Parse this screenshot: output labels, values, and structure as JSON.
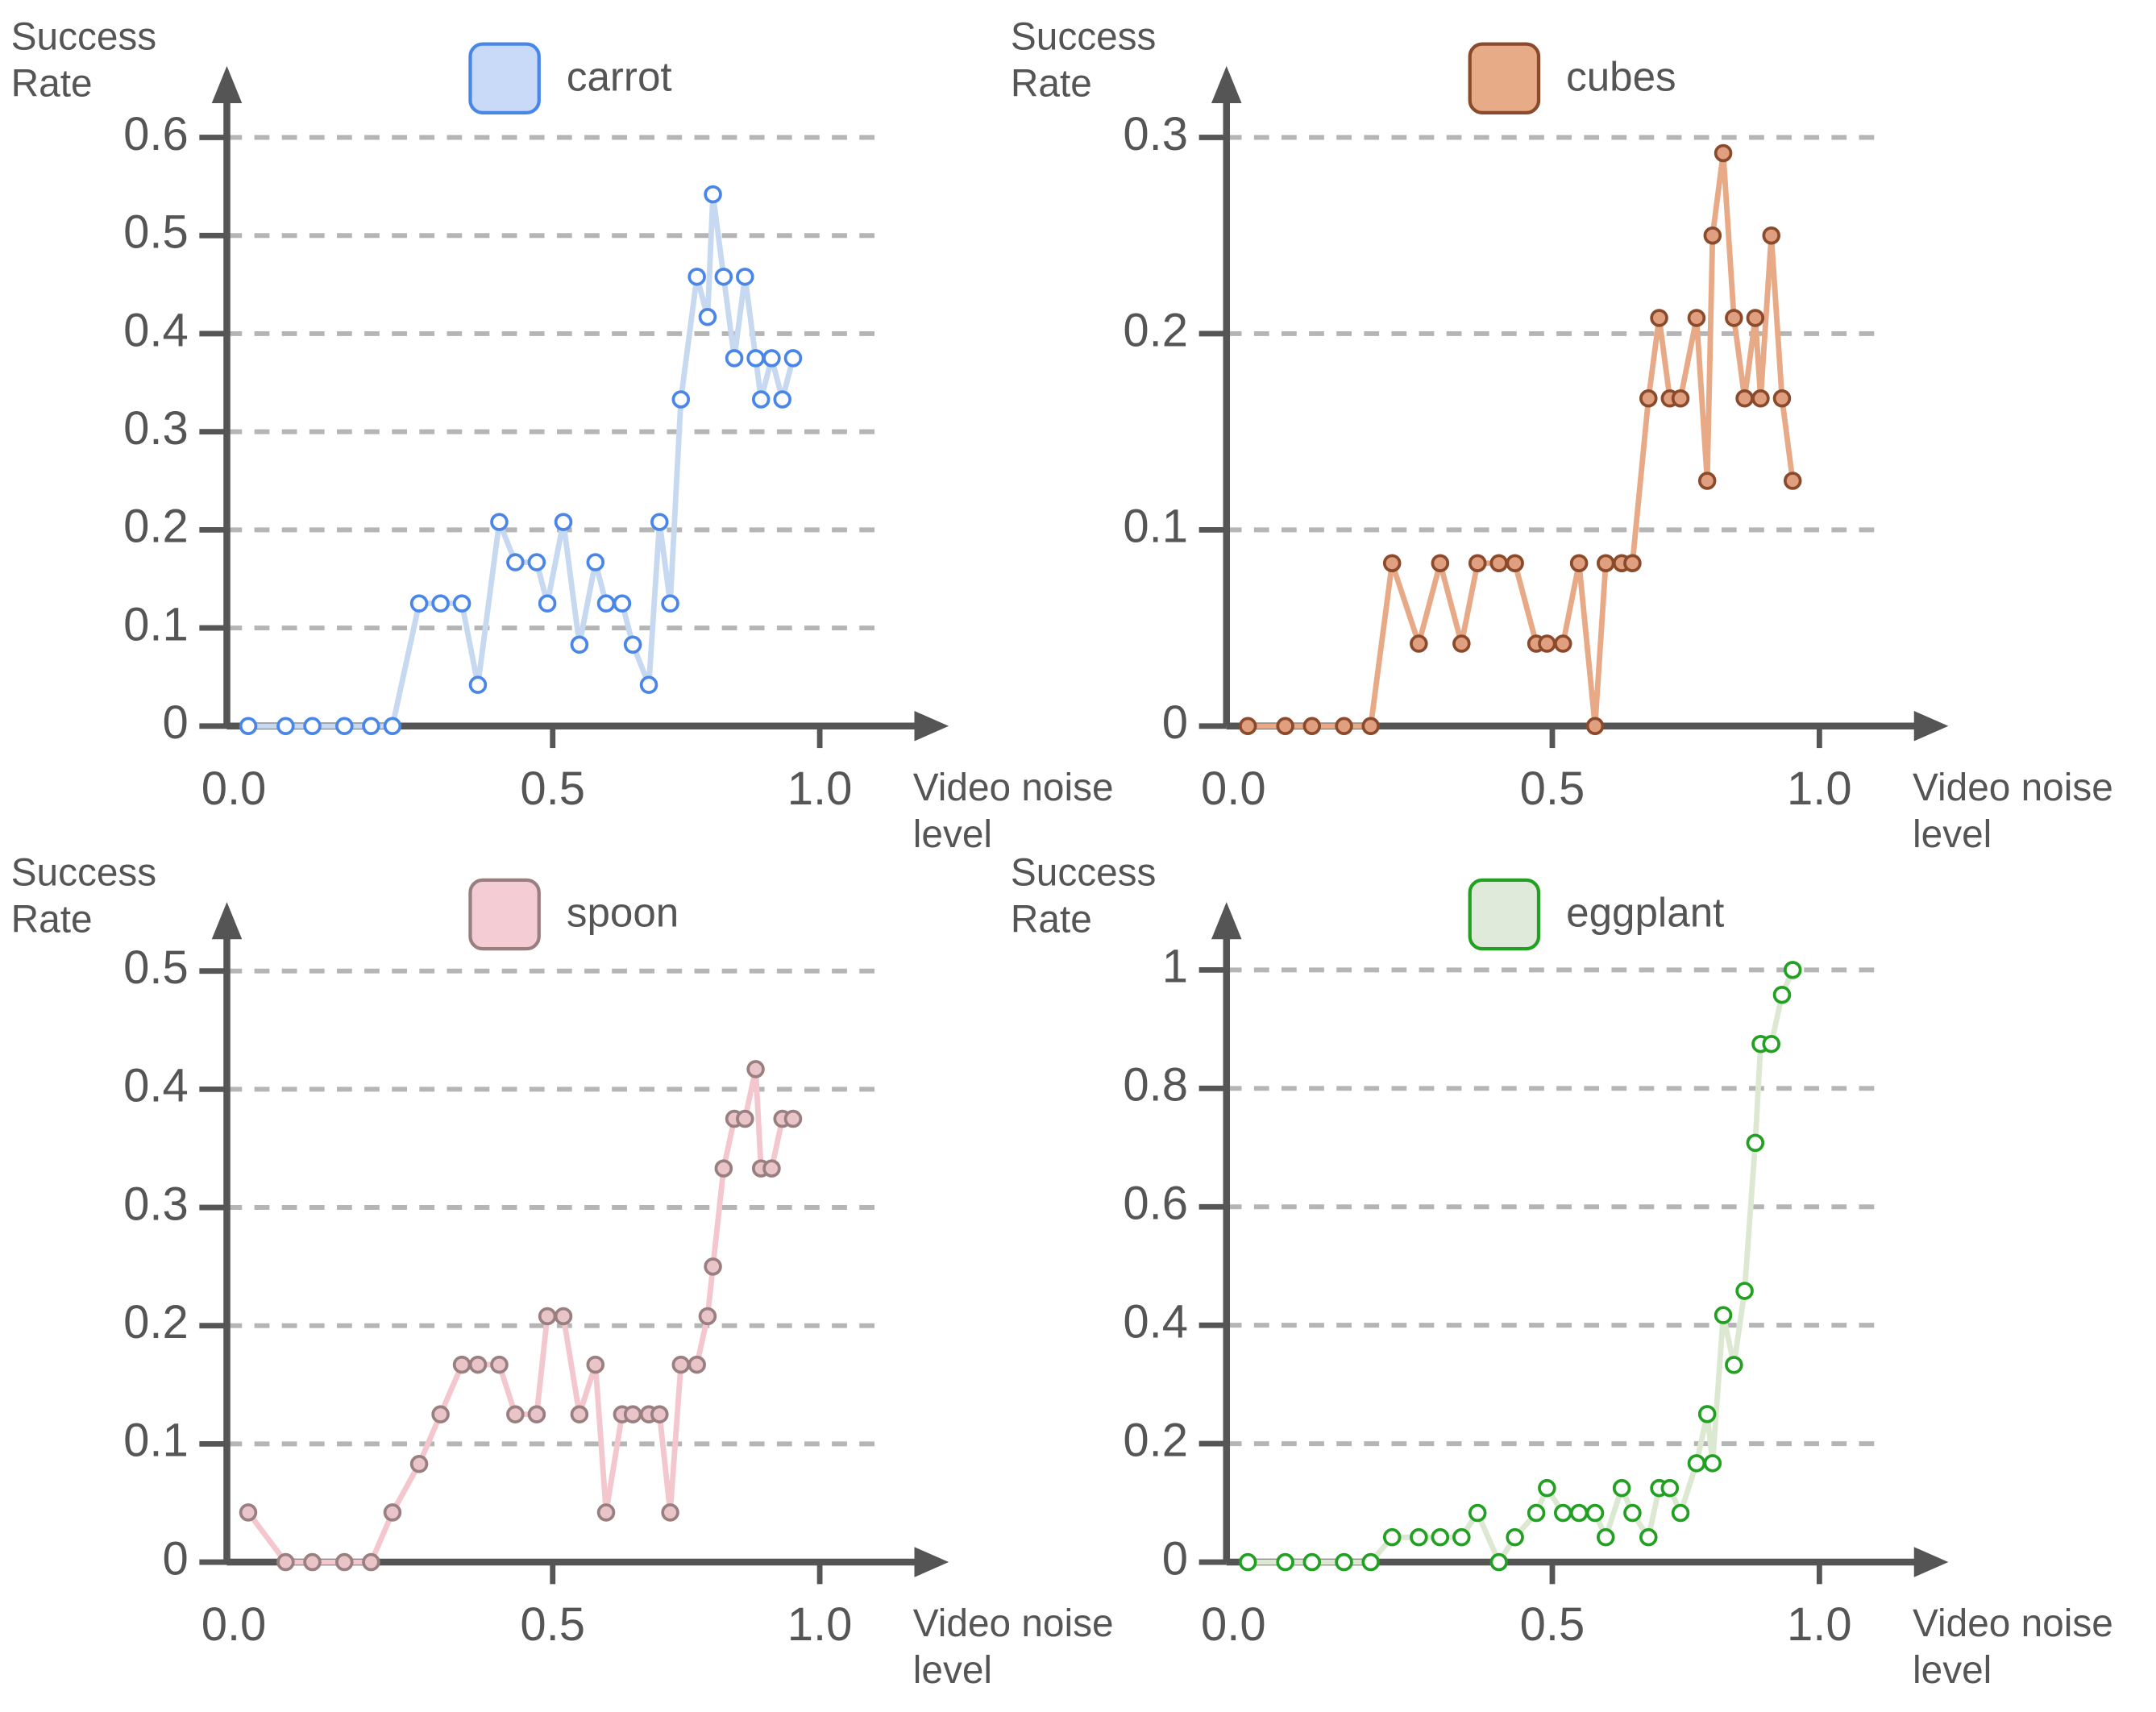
{
  "chart_data": [
    {
      "type": "line",
      "ylabel": "Success Rate",
      "xlabel": "Video noise level",
      "x": [
        -0.07,
        0.0,
        0.05,
        0.11,
        0.16,
        0.2,
        0.25,
        0.29,
        0.33,
        0.36,
        0.4,
        0.43,
        0.47,
        0.49,
        0.52,
        0.55,
        0.58,
        0.6,
        0.63,
        0.65,
        0.68,
        0.7,
        0.72,
        0.74,
        0.77,
        0.79,
        0.8,
        0.82,
        0.84,
        0.86,
        0.88,
        0.89,
        0.91,
        0.93,
        0.95
      ],
      "xlim": [
        -0.11,
        1.19
      ],
      "xticks": [
        {
          "value": 0,
          "label": "0.0"
        },
        0.5,
        {
          "value": 1,
          "label": "1.0"
        }
      ],
      "ylim": [
        0,
        0.67
      ],
      "yticks": [
        0,
        0.1,
        0.2,
        0.3,
        0.4,
        0.5,
        0.6
      ],
      "grid": true,
      "series": [
        {
          "name": "carrot",
          "color": "#c6d9f1",
          "marker_fill": "#ffffff",
          "marker_edge": "#4a86e8",
          "legend_fill": "#c9daf8",
          "values": [
            0,
            0,
            0,
            0,
            0,
            0,
            0.125,
            0.125,
            0.125,
            0.042,
            0.208,
            0.167,
            0.167,
            0.125,
            0.208,
            0.083,
            0.167,
            0.125,
            0.125,
            0.083,
            0.042,
            0.208,
            0.125,
            0.333,
            0.458,
            0.417,
            0.542,
            0.458,
            0.375,
            0.458,
            0.375,
            0.333,
            0.375,
            0.333,
            0.375
          ]
        }
      ]
    },
    {
      "type": "line",
      "ylabel": "Success Rate",
      "xlabel": "Video noise level",
      "x": [
        -0.07,
        0.0,
        0.05,
        0.11,
        0.16,
        0.2,
        0.25,
        0.29,
        0.33,
        0.36,
        0.4,
        0.43,
        0.47,
        0.49,
        0.52,
        0.55,
        0.58,
        0.6,
        0.63,
        0.65,
        0.68,
        0.7,
        0.72,
        0.74,
        0.77,
        0.79,
        0.8,
        0.82,
        0.84,
        0.86,
        0.88,
        0.89,
        0.91,
        0.93,
        0.95
      ],
      "xlim": [
        -0.11,
        1.19
      ],
      "xticks": [
        {
          "value": 0,
          "label": "0.0"
        },
        0.5,
        {
          "value": 1,
          "label": "1.0"
        }
      ],
      "ylim": [
        0,
        0.335
      ],
      "yticks": [
        0,
        0.1,
        0.2,
        0.3
      ],
      "grid": true,
      "series": [
        {
          "name": "cubes",
          "color": "#e8a987",
          "marker_fill": "#e0a080",
          "marker_edge": "#8b4a2b",
          "legend_fill": "#e8ab88",
          "values": [
            0,
            0,
            0,
            0,
            0,
            0.083,
            0.042,
            0.083,
            0.042,
            0.083,
            0.083,
            0.083,
            0.042,
            0.042,
            0.042,
            0.083,
            0,
            0.083,
            0.083,
            0.083,
            0.167,
            0.208,
            0.167,
            0.167,
            0.208,
            0.125,
            0.25,
            0.292,
            0.208,
            0.167,
            0.208,
            0.167,
            0.25,
            0.167,
            0.125
          ]
        }
      ]
    },
    {
      "type": "line",
      "ylabel": "Success Rate",
      "xlabel": "Video noise level",
      "x": [
        -0.07,
        0.0,
        0.05,
        0.11,
        0.16,
        0.2,
        0.25,
        0.29,
        0.33,
        0.36,
        0.4,
        0.43,
        0.47,
        0.49,
        0.52,
        0.55,
        0.58,
        0.6,
        0.63,
        0.65,
        0.68,
        0.7,
        0.72,
        0.74,
        0.77,
        0.79,
        0.8,
        0.82,
        0.84,
        0.86,
        0.88,
        0.89,
        0.91,
        0.93,
        0.95
      ],
      "xlim": [
        -0.11,
        1.19
      ],
      "xticks": [
        {
          "value": 0,
          "label": "0.0"
        },
        0.5,
        {
          "value": 1,
          "label": "1.0"
        }
      ],
      "ylim": [
        0,
        0.556
      ],
      "yticks": [
        0,
        0.1,
        0.2,
        0.3,
        0.4,
        0.5
      ],
      "grid": true,
      "series": [
        {
          "name": "spoon",
          "color": "#f4c7cf",
          "marker_fill": "#e9c4c8",
          "marker_edge": "#9a7f80",
          "legend_fill": "#f4ccd3",
          "values": [
            0.042,
            0,
            0,
            0,
            0,
            0.042,
            0.083,
            0.125,
            0.167,
            0.167,
            0.167,
            0.125,
            0.125,
            0.208,
            0.208,
            0.125,
            0.167,
            0.042,
            0.125,
            0.125,
            0.125,
            0.125,
            0.042,
            0.167,
            0.167,
            0.208,
            0.25,
            0.333,
            0.375,
            0.375,
            0.417,
            0.333,
            0.333,
            0.375,
            0.375
          ]
        }
      ]
    },
    {
      "type": "line",
      "ylabel": "Success Rate",
      "xlabel": "Video noise level",
      "x": [
        -0.07,
        0.0,
        0.05,
        0.11,
        0.16,
        0.2,
        0.25,
        0.29,
        0.33,
        0.36,
        0.4,
        0.43,
        0.47,
        0.49,
        0.52,
        0.55,
        0.58,
        0.6,
        0.63,
        0.65,
        0.68,
        0.7,
        0.72,
        0.74,
        0.77,
        0.79,
        0.8,
        0.82,
        0.84,
        0.86,
        0.88,
        0.89,
        0.91,
        0.93,
        0.95
      ],
      "xlim": [
        -0.11,
        1.19
      ],
      "xticks": [
        {
          "value": 0,
          "label": "0.0"
        },
        0.5,
        {
          "value": 1,
          "label": "1.0"
        }
      ],
      "ylim": [
        0,
        1.11
      ],
      "yticks": [
        0,
        0.2,
        0.4,
        0.6,
        0.8,
        1
      ],
      "grid": true,
      "series": [
        {
          "name": "eggplant",
          "color": "#dde8d3",
          "marker_fill": "#ffffff",
          "marker_edge": "#22a022",
          "legend_fill": "#dfeadb",
          "values": [
            0,
            0,
            0,
            0,
            0,
            0.042,
            0.042,
            0.042,
            0.042,
            0.083,
            0,
            0.042,
            0.083,
            0.125,
            0.083,
            0.083,
            0.083,
            0.042,
            0.125,
            0.083,
            0.042,
            0.125,
            0.125,
            0.083,
            0.167,
            0.25,
            0.167,
            0.417,
            0.333,
            0.458,
            0.708,
            0.875,
            0.875,
            0.958,
            1
          ]
        }
      ]
    }
  ]
}
